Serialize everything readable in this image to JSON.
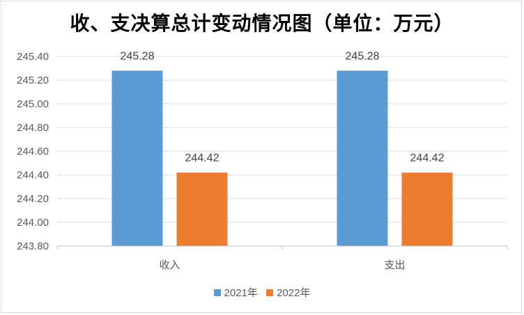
{
  "chart_data": {
    "type": "bar",
    "title": "收、支决算总计变动情况图（单位：万元）",
    "categories": [
      "收入",
      "支出"
    ],
    "series": [
      {
        "name": "2021年",
        "values": [
          245.28,
          245.28
        ],
        "labels": [
          "245.28",
          "245.28"
        ],
        "color": "#5b9bd5"
      },
      {
        "name": "2022年",
        "values": [
          244.42,
          244.42
        ],
        "labels": [
          "244.42",
          "244.42"
        ],
        "color": "#ed7d31"
      }
    ],
    "ylim": [
      243.8,
      245.4
    ],
    "yticks": [
      "243.80",
      "244.00",
      "244.20",
      "244.40",
      "244.60",
      "244.80",
      "245.00",
      "245.20",
      "245.40"
    ],
    "grid": true,
    "legend_position": "bottom"
  }
}
